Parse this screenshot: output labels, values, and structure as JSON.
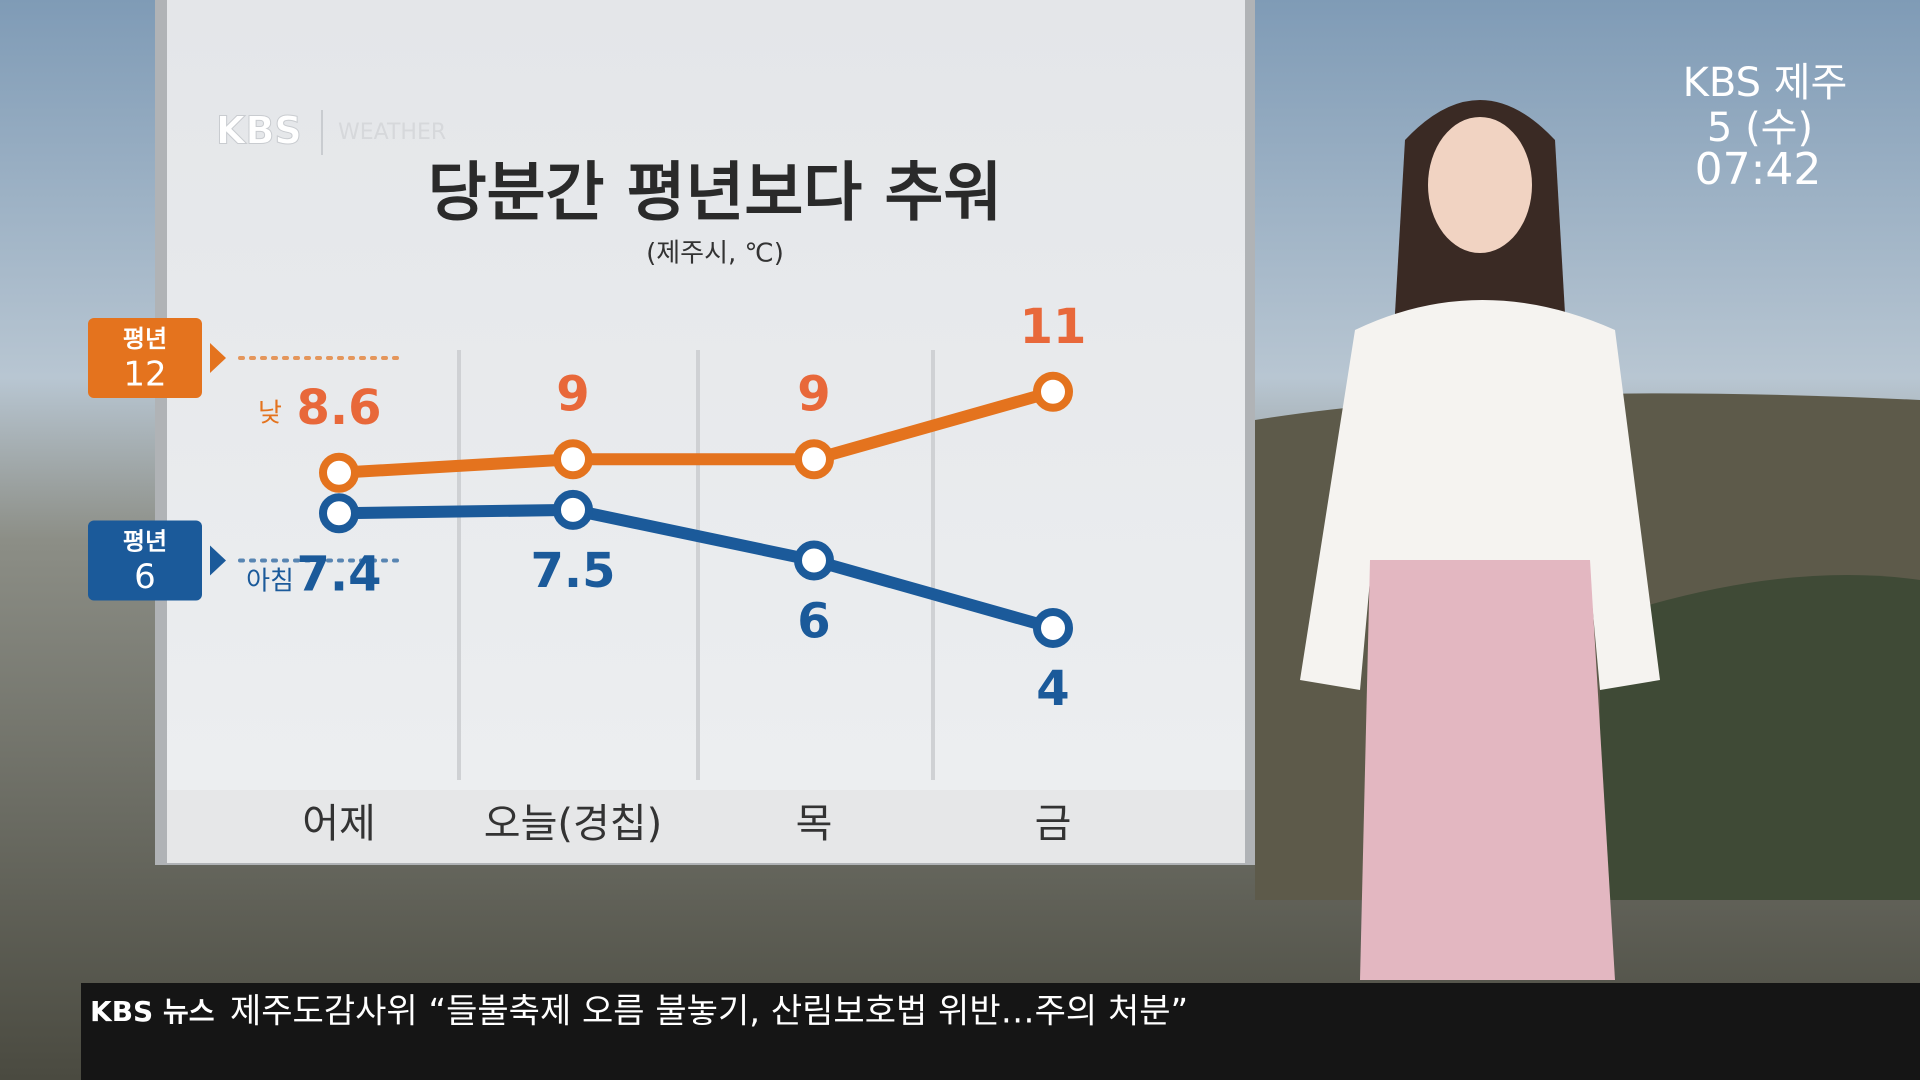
{
  "broadcast": {
    "logo": "KBS 제주",
    "date": "5 (수)",
    "time": "07:42"
  },
  "ticker": {
    "source": "KBS 뉴스",
    "headline": "제주도감사위 “들불축제 오름 불놓기, 산림보호법 위반…주의 처분”"
  },
  "chart_data": {
    "type": "line",
    "brand": "KBS",
    "brand_sub": "WEATHER",
    "title": "당분간 평년보다 추워",
    "subtitle": "(제주시, ℃)",
    "categories": [
      "어제",
      "오늘(경칩)",
      "목",
      "금"
    ],
    "series": [
      {
        "name": "낮",
        "color": "#e4731e",
        "values": [
          8.6,
          9,
          9,
          11
        ],
        "normal_label": "평년",
        "normal": 12
      },
      {
        "name": "아침",
        "color": "#1b5a9a",
        "values": [
          7.4,
          7.5,
          6,
          4
        ],
        "normal_label": "평년",
        "normal": 6
      }
    ]
  }
}
